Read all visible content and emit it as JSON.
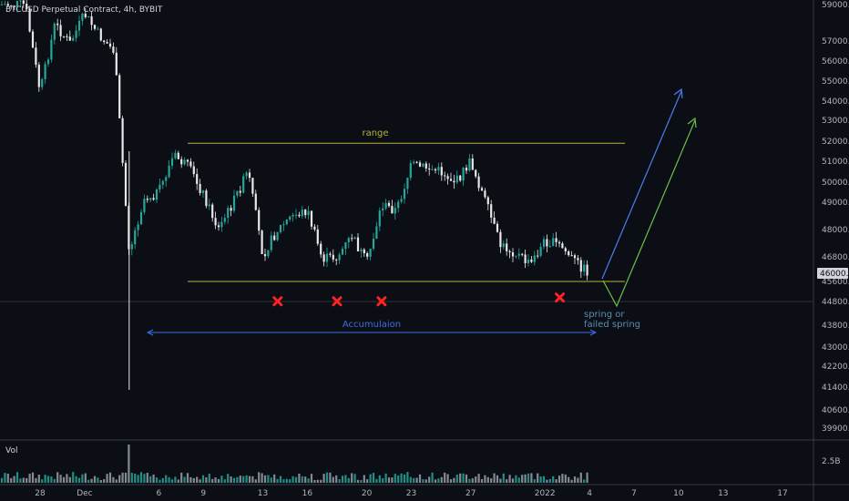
{
  "header": {
    "title": "BTCUSD Perpetual Contract, 4h, BYBIT",
    "volume_label": "Vol"
  },
  "colors": {
    "background": "#0c0e15",
    "candle_up": "#26a69a",
    "candle_down": "#e8e8e8",
    "range_line": "#b5b33a",
    "accumulation": "#3a6fe0",
    "arrow_blue": "#4a7ff0",
    "arrow_green": "#6cc04a",
    "marker": "#ff2222",
    "spring_text": "#5a8fb0"
  },
  "chart_data": {
    "type": "candlestick",
    "symbol": "BTCUSD Perpetual Contract",
    "timeframe": "4h",
    "exchange": "BYBIT",
    "price_axis": {
      "ticks": [
        "59000.0",
        "57000.0",
        "56000.0",
        "55000.0",
        "54000.0",
        "53000.0",
        "52000.0",
        "51000.0",
        "50000.0",
        "49000.0",
        "48000.0",
        "46800.0",
        "45600.0",
        "44800.0",
        "43800.0",
        "43000.0",
        "42200.0",
        "41400.0",
        "40600.0",
        "39900.0"
      ],
      "current_price": "46000.0",
      "volume_tick": "2.5B"
    },
    "time_axis": {
      "ticks": [
        "28",
        "Dec",
        "6",
        "9",
        "13",
        "16",
        "20",
        "23",
        "27",
        "2022",
        "4",
        "7",
        "10",
        "13",
        "17"
      ]
    },
    "price_path": [
      {
        "date": "Nov 27",
        "price": 59200
      },
      {
        "date": "Nov 28",
        "price": 54500
      },
      {
        "date": "Nov 29",
        "price": 58000
      },
      {
        "date": "Nov 30",
        "price": 57000
      },
      {
        "date": "Dec 1",
        "price": 58500
      },
      {
        "date": "Dec 2",
        "price": 57400
      },
      {
        "date": "Dec 3",
        "price": 56600
      },
      {
        "date": "Dec 4",
        "price": 47000
      },
      {
        "date": "Dec 5",
        "price": 49200
      },
      {
        "date": "Dec 6",
        "price": 49500
      },
      {
        "date": "Dec 7",
        "price": 51300
      },
      {
        "date": "Dec 8",
        "price": 50700
      },
      {
        "date": "Dec 9",
        "price": 49400
      },
      {
        "date": "Dec 10",
        "price": 48000
      },
      {
        "date": "Dec 11",
        "price": 49000
      },
      {
        "date": "Dec 12",
        "price": 50500
      },
      {
        "date": "Dec 13",
        "price": 46900
      },
      {
        "date": "Dec 14",
        "price": 48000
      },
      {
        "date": "Dec 15",
        "price": 48500
      },
      {
        "date": "Dec 16",
        "price": 48700
      },
      {
        "date": "Dec 17",
        "price": 46700
      },
      {
        "date": "Dec 18",
        "price": 46800
      },
      {
        "date": "Dec 19",
        "price": 47700
      },
      {
        "date": "Dec 20",
        "price": 46500
      },
      {
        "date": "Dec 21",
        "price": 48900
      },
      {
        "date": "Dec 22",
        "price": 48700
      },
      {
        "date": "Dec 23",
        "price": 50800
      },
      {
        "date": "Dec 24",
        "price": 50700
      },
      {
        "date": "Dec 25",
        "price": 50500
      },
      {
        "date": "Dec 26",
        "price": 50000
      },
      {
        "date": "Dec 27",
        "price": 51000
      },
      {
        "date": "Dec 28",
        "price": 49000
      },
      {
        "date": "Dec 29",
        "price": 47300
      },
      {
        "date": "Dec 30",
        "price": 47000
      },
      {
        "date": "Dec 31",
        "price": 46400
      },
      {
        "date": "Jan 1",
        "price": 47500
      },
      {
        "date": "Jan 2",
        "price": 47300
      },
      {
        "date": "Jan 3",
        "price": 46600
      },
      {
        "date": "Jan 4",
        "price": 46000
      }
    ],
    "volume_spike_date": "Dec 4",
    "annotations": {
      "range": {
        "label": "range",
        "top_price": 51900,
        "bottom_price": 45600
      },
      "accumulation": {
        "label": "Accumulaion"
      },
      "spring": {
        "label_line1": "spring or",
        "label_line2": "failed spring"
      },
      "markers": [
        {
          "date": "Dec 14",
          "price": 45100
        },
        {
          "date": "Dec 18",
          "price": 45100
        },
        {
          "date": "Dec 21",
          "price": 45100
        },
        {
          "date": "Jan 2",
          "price": 45250
        }
      ]
    }
  }
}
